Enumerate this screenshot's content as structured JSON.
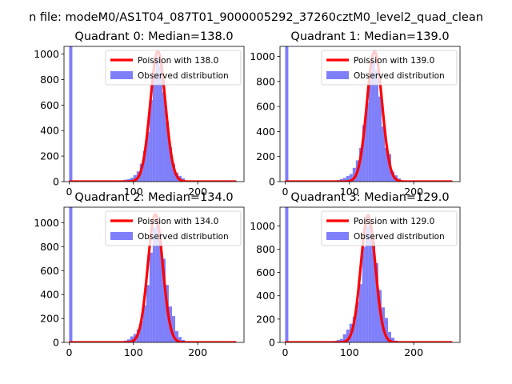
{
  "figure": {
    "suptitle": "n file: modeM0/AS1T04_087T01_9000005292_37260cztM0_level2_quad_clean"
  },
  "chart_data": [
    {
      "type": "bar",
      "title": "Quadrant 0: Median=138.0",
      "xlim": [
        -8,
        272
      ],
      "ylim": [
        0,
        1060
      ],
      "xticks": [
        0,
        100,
        200
      ],
      "yticks": [
        0,
        200,
        400,
        600,
        800,
        1000
      ],
      "median": 138.0,
      "hist_bins": [
        [
          0,
          5,
          1060
        ],
        [
          70,
          75,
          2
        ],
        [
          75,
          80,
          5
        ],
        [
          80,
          85,
          10
        ],
        [
          85,
          90,
          15
        ],
        [
          90,
          95,
          20
        ],
        [
          95,
          100,
          30
        ],
        [
          100,
          105,
          50
        ],
        [
          105,
          110,
          80
        ],
        [
          110,
          115,
          140
        ],
        [
          115,
          120,
          240
        ],
        [
          120,
          125,
          390
        ],
        [
          125,
          130,
          640
        ],
        [
          130,
          135,
          850
        ],
        [
          135,
          140,
          980
        ],
        [
          140,
          145,
          910
        ],
        [
          145,
          150,
          700
        ],
        [
          150,
          155,
          470
        ],
        [
          155,
          160,
          270
        ],
        [
          160,
          165,
          140
        ],
        [
          165,
          170,
          70
        ],
        [
          170,
          175,
          45
        ],
        [
          175,
          180,
          25
        ],
        [
          180,
          185,
          8
        ],
        [
          185,
          190,
          3
        ]
      ],
      "poisson_peak": 1020,
      "poisson_x_range": [
        0,
        260
      ],
      "legend": {
        "position": "upper-right",
        "entries": [
          "Poission with 138.0",
          "Observed distribution"
        ]
      }
    },
    {
      "type": "bar",
      "title": "Quadrant 1: Median=139.0",
      "xlim": [
        -8,
        272
      ],
      "ylim": [
        0,
        1080
      ],
      "xticks": [
        0,
        100,
        200
      ],
      "yticks": [
        0,
        200,
        400,
        600,
        800,
        1000
      ],
      "median": 139.0,
      "hist_bins": [
        [
          0,
          5,
          1080
        ],
        [
          70,
          75,
          3
        ],
        [
          75,
          80,
          6
        ],
        [
          80,
          85,
          12
        ],
        [
          85,
          90,
          20
        ],
        [
          90,
          95,
          30
        ],
        [
          95,
          100,
          45
        ],
        [
          100,
          105,
          60
        ],
        [
          105,
          110,
          110
        ],
        [
          110,
          115,
          170
        ],
        [
          115,
          120,
          270
        ],
        [
          120,
          125,
          450
        ],
        [
          125,
          130,
          630
        ],
        [
          130,
          135,
          880
        ],
        [
          135,
          140,
          960
        ],
        [
          140,
          145,
          890
        ],
        [
          145,
          150,
          680
        ],
        [
          150,
          155,
          440
        ],
        [
          155,
          160,
          270
        ],
        [
          160,
          165,
          220
        ],
        [
          165,
          170,
          80
        ],
        [
          170,
          175,
          50
        ],
        [
          175,
          180,
          25
        ],
        [
          180,
          185,
          8
        ],
        [
          185,
          190,
          3
        ]
      ],
      "poisson_peak": 1040,
      "poisson_x_range": [
        0,
        260
      ],
      "legend": {
        "position": "upper-right",
        "entries": [
          "Poission with 139.0",
          "Observed distribution"
        ]
      }
    },
    {
      "type": "bar",
      "title": "Quadrant 2: Median=134.0",
      "xlim": [
        -8,
        272
      ],
      "ylim": [
        0,
        1130
      ],
      "xticks": [
        0,
        100,
        200
      ],
      "yticks": [
        0,
        200,
        400,
        600,
        800,
        1000
      ],
      "median": 134.0,
      "hist_bins": [
        [
          0,
          5,
          1130
        ],
        [
          70,
          75,
          3
        ],
        [
          75,
          80,
          5
        ],
        [
          80,
          85,
          10
        ],
        [
          85,
          90,
          15
        ],
        [
          90,
          95,
          25
        ],
        [
          95,
          100,
          50
        ],
        [
          100,
          105,
          70
        ],
        [
          105,
          110,
          110
        ],
        [
          110,
          115,
          180
        ],
        [
          115,
          120,
          310
        ],
        [
          120,
          125,
          480
        ],
        [
          125,
          130,
          750
        ],
        [
          130,
          135,
          960
        ],
        [
          135,
          140,
          1050
        ],
        [
          140,
          145,
          900
        ],
        [
          145,
          150,
          700
        ],
        [
          150,
          155,
          480
        ],
        [
          155,
          160,
          300
        ],
        [
          160,
          165,
          220
        ],
        [
          165,
          170,
          95
        ],
        [
          170,
          175,
          45
        ],
        [
          175,
          180,
          20
        ],
        [
          180,
          185,
          8
        ],
        [
          185,
          190,
          3
        ]
      ],
      "poisson_peak": 1070,
      "poisson_x_range": [
        0,
        260
      ],
      "legend": {
        "position": "upper-right",
        "entries": [
          "Poission with 134.0",
          "Observed distribution"
        ]
      }
    },
    {
      "type": "bar",
      "title": "Quadrant 3: Median=129.0",
      "xlim": [
        -8,
        272
      ],
      "ylim": [
        0,
        1160
      ],
      "xticks": [
        0,
        100,
        200
      ],
      "yticks": [
        0,
        200,
        400,
        600,
        800,
        1000
      ],
      "median": 129.0,
      "hist_bins": [
        [
          0,
          5,
          1160
        ],
        [
          65,
          70,
          3
        ],
        [
          70,
          75,
          6
        ],
        [
          75,
          80,
          12
        ],
        [
          80,
          85,
          20
        ],
        [
          85,
          90,
          30
        ],
        [
          90,
          95,
          70
        ],
        [
          95,
          100,
          110
        ],
        [
          100,
          105,
          160
        ],
        [
          105,
          110,
          220
        ],
        [
          110,
          115,
          350
        ],
        [
          115,
          120,
          500
        ],
        [
          120,
          125,
          820
        ],
        [
          125,
          130,
          1000
        ],
        [
          130,
          135,
          1060
        ],
        [
          135,
          140,
          870
        ],
        [
          140,
          145,
          680
        ],
        [
          145,
          150,
          450
        ],
        [
          150,
          155,
          300
        ],
        [
          155,
          160,
          210
        ],
        [
          160,
          165,
          90
        ],
        [
          165,
          170,
          40
        ],
        [
          170,
          175,
          15
        ],
        [
          175,
          180,
          5
        ]
      ],
      "poisson_peak": 1090,
      "poisson_x_range": [
        0,
        260
      ],
      "legend": {
        "position": "upper-right",
        "entries": [
          "Poission with 129.0",
          "Observed distribution"
        ]
      }
    }
  ],
  "colors": {
    "hist": "#7f7ffa",
    "poisson": "#ff0000",
    "axes": "#000000"
  }
}
